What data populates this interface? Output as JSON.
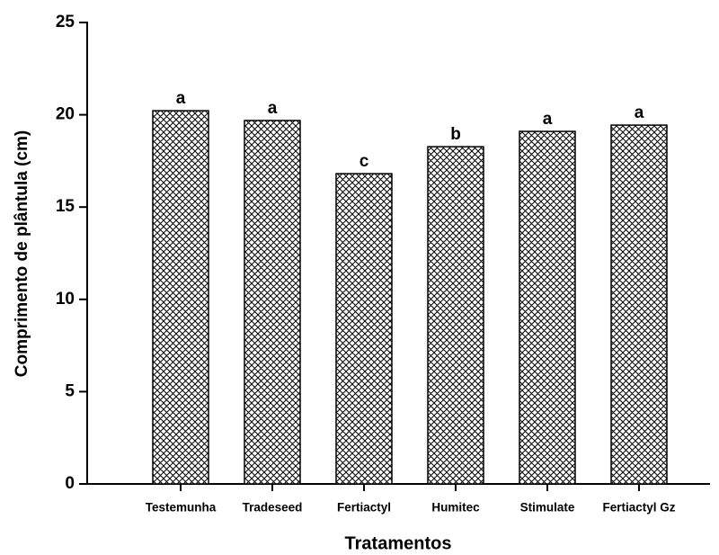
{
  "chart_data": {
    "type": "bar",
    "xlabel": "Tratamentos",
    "ylabel": "Comprimento de plântula (cm)",
    "categories": [
      "Testemunha",
      "Tradeseed",
      "Fertiactyl",
      "Humitec",
      "Stimulate",
      "Fertiactyl Gz"
    ],
    "values": [
      20.22,
      19.69,
      16.81,
      18.27,
      19.1,
      19.44
    ],
    "letters": [
      "a",
      "a",
      "c",
      "b",
      "a",
      "a"
    ],
    "color": "#000000",
    "ylim": [
      0,
      25
    ],
    "yticks": [
      0,
      5,
      10,
      15,
      20,
      25
    ],
    "grid": false
  }
}
